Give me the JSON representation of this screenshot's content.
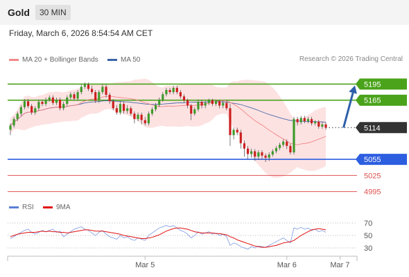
{
  "header": {
    "symbol": "Gold",
    "timeframe": "30 MIN"
  },
  "datetime": "Friday, March 6, 2026 8:54:54 AM CET",
  "legend": {
    "bollinger": {
      "label": "MA 20 + Bollinger Bands",
      "color": "#f28a8a"
    },
    "ma50": {
      "label": "MA 50",
      "color": "#3a64a8"
    },
    "rsi": {
      "label": "RSI",
      "color": "#5a7fd6"
    },
    "rsi_ma": {
      "label": "9MA",
      "color": "#e01010"
    }
  },
  "credit": "Research © 2026 Trading Central",
  "colors": {
    "resistance": "#4aa31a",
    "pivot": "#2d5ee0",
    "support": "#e05050",
    "current": "#333333",
    "candle_up": "#3d9a2a",
    "candle_down": "#cc1f1f",
    "band_fill": "#fde2e2",
    "arrow": "#2d5fa8"
  },
  "chart_data": {
    "type": "candlestick",
    "price_range": [
      4983,
      5220
    ],
    "levels": [
      {
        "label": "5195",
        "value": 5195,
        "kind": "resistance"
      },
      {
        "label": "5165",
        "value": 5165,
        "kind": "resistance"
      },
      {
        "label": "5114",
        "value": 5114,
        "kind": "current"
      },
      {
        "label": "5055",
        "value": 5055,
        "kind": "pivot"
      },
      {
        "label": "5025",
        "value": 5025,
        "kind": "support"
      },
      {
        "label": "4995",
        "value": 4995,
        "kind": "support"
      }
    ],
    "x_labels": [
      {
        "label": "Mar 5",
        "index": 38
      },
      {
        "label": "Mar 6",
        "index": 78
      },
      {
        "label": "Mar 7",
        "index": 93
      }
    ],
    "projection": {
      "from_index": 94,
      "from_value": 5114,
      "to_value": 5195
    },
    "candles": [
      [
        5110,
        5118,
        5100,
        5122
      ],
      [
        5118,
        5130,
        5114,
        5134
      ],
      [
        5130,
        5140,
        5126,
        5144
      ],
      [
        5140,
        5152,
        5136,
        5156
      ],
      [
        5152,
        5163,
        5148,
        5167
      ],
      [
        5163,
        5154,
        5150,
        5167
      ],
      [
        5154,
        5142,
        5138,
        5158
      ],
      [
        5142,
        5150,
        5138,
        5154
      ],
      [
        5150,
        5162,
        5146,
        5166
      ],
      [
        5162,
        5158,
        5154,
        5166
      ],
      [
        5158,
        5166,
        5154,
        5170
      ],
      [
        5166,
        5170,
        5162,
        5174
      ],
      [
        5170,
        5160,
        5156,
        5174
      ],
      [
        5160,
        5166,
        5156,
        5170
      ],
      [
        5166,
        5150,
        5146,
        5170
      ],
      [
        5150,
        5158,
        5146,
        5162
      ],
      [
        5158,
        5170,
        5154,
        5174
      ],
      [
        5170,
        5176,
        5166,
        5180
      ],
      [
        5176,
        5168,
        5164,
        5180
      ],
      [
        5168,
        5180,
        5164,
        5184
      ],
      [
        5180,
        5190,
        5176,
        5194
      ],
      [
        5190,
        5194,
        5186,
        5198
      ],
      [
        5194,
        5186,
        5182,
        5198
      ],
      [
        5186,
        5180,
        5176,
        5192
      ],
      [
        5180,
        5164,
        5160,
        5184
      ],
      [
        5164,
        5180,
        5160,
        5184
      ],
      [
        5180,
        5190,
        5176,
        5194
      ],
      [
        5190,
        5175,
        5170,
        5194
      ],
      [
        5175,
        5163,
        5158,
        5179
      ],
      [
        5163,
        5150,
        5146,
        5167
      ],
      [
        5150,
        5142,
        5138,
        5156
      ],
      [
        5142,
        5158,
        5138,
        5162
      ],
      [
        5158,
        5145,
        5140,
        5162
      ],
      [
        5145,
        5150,
        5140,
        5156
      ],
      [
        5150,
        5140,
        5136,
        5154
      ],
      [
        5140,
        5130,
        5122,
        5144
      ],
      [
        5130,
        5138,
        5126,
        5142
      ],
      [
        5138,
        5128,
        5120,
        5142
      ],
      [
        5128,
        5122,
        5118,
        5134
      ],
      [
        5122,
        5140,
        5118,
        5144
      ],
      [
        5140,
        5148,
        5136,
        5152
      ],
      [
        5148,
        5156,
        5144,
        5160
      ],
      [
        5156,
        5166,
        5152,
        5170
      ],
      [
        5166,
        5176,
        5162,
        5180
      ],
      [
        5176,
        5184,
        5172,
        5188
      ],
      [
        5184,
        5180,
        5176,
        5188
      ],
      [
        5180,
        5188,
        5176,
        5192
      ],
      [
        5188,
        5180,
        5176,
        5192
      ],
      [
        5180,
        5172,
        5168,
        5184
      ],
      [
        5172,
        5165,
        5160,
        5176
      ],
      [
        5165,
        5155,
        5150,
        5168
      ],
      [
        5155,
        5140,
        5128,
        5158
      ],
      [
        5140,
        5148,
        5136,
        5152
      ],
      [
        5148,
        5162,
        5144,
        5166
      ],
      [
        5162,
        5155,
        5150,
        5166
      ],
      [
        5155,
        5160,
        5150,
        5164
      ],
      [
        5160,
        5165,
        5156,
        5168
      ],
      [
        5165,
        5158,
        5154,
        5168
      ],
      [
        5158,
        5163,
        5154,
        5166
      ],
      [
        5163,
        5155,
        5150,
        5166
      ],
      [
        5155,
        5160,
        5150,
        5164
      ],
      [
        5160,
        5150,
        5146,
        5164
      ],
      [
        5150,
        5100,
        5080,
        5158
      ],
      [
        5100,
        5110,
        5092,
        5114
      ],
      [
        5110,
        5105,
        5100,
        5114
      ],
      [
        5105,
        5085,
        5075,
        5110
      ],
      [
        5085,
        5075,
        5060,
        5090
      ],
      [
        5075,
        5065,
        5055,
        5080
      ],
      [
        5065,
        5070,
        5058,
        5075
      ],
      [
        5070,
        5060,
        5052,
        5074
      ],
      [
        5060,
        5068,
        5054,
        5072
      ],
      [
        5068,
        5062,
        5055,
        5072
      ],
      [
        5062,
        5058,
        5050,
        5066
      ],
      [
        5058,
        5064,
        5052,
        5068
      ],
      [
        5064,
        5070,
        5060,
        5074
      ],
      [
        5070,
        5076,
        5066,
        5080
      ],
      [
        5076,
        5082,
        5072,
        5086
      ],
      [
        5082,
        5088,
        5078,
        5092
      ],
      [
        5088,
        5080,
        5074,
        5092
      ],
      [
        5080,
        5068,
        5064,
        5084
      ],
      [
        5068,
        5130,
        5064,
        5134
      ],
      [
        5130,
        5124,
        5118,
        5134
      ],
      [
        5124,
        5132,
        5120,
        5136
      ],
      [
        5132,
        5126,
        5122,
        5136
      ],
      [
        5126,
        5130,
        5122,
        5134
      ],
      [
        5130,
        5122,
        5118,
        5134
      ],
      [
        5122,
        5125,
        5118,
        5128
      ],
      [
        5125,
        5116,
        5112,
        5128
      ],
      [
        5116,
        5120,
        5112,
        5124
      ],
      [
        5120,
        5114,
        5110,
        5124
      ]
    ],
    "rsi": {
      "levels": [
        70,
        50,
        30
      ],
      "range": [
        20,
        80
      ],
      "values": [
        45,
        48,
        52,
        55,
        58,
        60,
        55,
        52,
        55,
        58,
        56,
        58,
        60,
        55,
        57,
        48,
        52,
        56,
        60,
        62,
        64,
        60,
        58,
        54,
        50,
        55,
        58,
        52,
        48,
        46,
        44,
        50,
        46,
        48,
        44,
        42,
        46,
        44,
        42,
        50,
        54,
        58,
        62,
        64,
        66,
        64,
        66,
        62,
        58,
        56,
        52,
        46,
        50,
        56,
        52,
        54,
        56,
        52,
        54,
        50,
        52,
        48,
        34,
        38,
        36,
        32,
        30,
        28,
        32,
        30,
        33,
        32,
        31,
        34,
        37,
        40,
        43,
        46,
        42,
        38,
        62,
        60,
        63,
        60,
        62,
        58,
        60,
        56,
        58,
        55
      ],
      "ma": [
        48,
        50,
        52,
        53,
        54,
        55,
        55,
        55,
        56,
        57,
        56,
        57,
        56,
        56,
        55,
        55,
        54,
        55,
        56,
        57,
        58,
        59,
        59,
        58,
        57,
        57,
        57,
        56,
        55,
        54,
        53,
        52,
        50,
        49,
        48,
        47,
        46,
        45,
        45,
        46,
        47,
        49,
        51,
        54,
        57,
        59,
        61,
        62,
        62,
        61,
        60,
        58,
        56,
        55,
        54,
        54,
        54,
        54,
        53,
        53,
        52,
        51,
        48,
        46,
        43,
        41,
        39,
        37,
        35,
        33,
        32,
        31,
        31,
        32,
        33,
        34,
        36,
        38,
        39,
        40,
        42,
        46,
        50,
        53,
        56,
        59,
        60,
        61,
        60,
        59
      ]
    }
  }
}
